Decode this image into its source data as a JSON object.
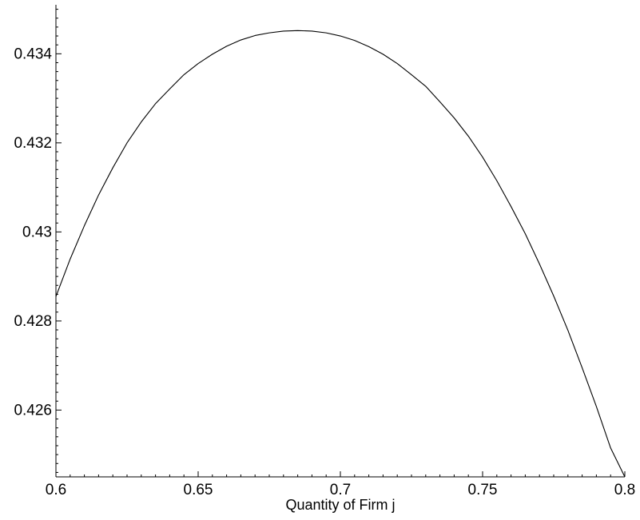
{
  "chart_data": {
    "type": "line",
    "title": "",
    "xlabel": "Quantity of Firm j",
    "ylabel": "",
    "xlim": [
      0.6,
      0.8
    ],
    "ylim": [
      0.4245,
      0.4351
    ],
    "grid": false,
    "x_ticks": [
      {
        "value": 0.6,
        "label": "0.6"
      },
      {
        "value": 0.65,
        "label": "0.65"
      },
      {
        "value": 0.7,
        "label": "0.7"
      },
      {
        "value": 0.75,
        "label": "0.75"
      },
      {
        "value": 0.8,
        "label": "0.8"
      }
    ],
    "y_ticks": [
      {
        "value": 0.426,
        "label": "0.426"
      },
      {
        "value": 0.428,
        "label": "0.428"
      },
      {
        "value": 0.43,
        "label": "0.43"
      },
      {
        "value": 0.432,
        "label": "0.432"
      },
      {
        "value": 0.434,
        "label": "0.434"
      }
    ],
    "series": [
      {
        "color": "#000000",
        "x": [
          0.6,
          0.605,
          0.61,
          0.615,
          0.62,
          0.625,
          0.63,
          0.635,
          0.64,
          0.645,
          0.65,
          0.655,
          0.66,
          0.665,
          0.67,
          0.675,
          0.68,
          0.685,
          0.69,
          0.695,
          0.7,
          0.705,
          0.71,
          0.715,
          0.72,
          0.725,
          0.73,
          0.735,
          0.74,
          0.745,
          0.75,
          0.755,
          0.76,
          0.765,
          0.77,
          0.775,
          0.78,
          0.785,
          0.79,
          0.795,
          0.8
        ],
        "y": [
          0.42855,
          0.42939,
          0.43014,
          0.43083,
          0.43144,
          0.432,
          0.43247,
          0.43288,
          0.43321,
          0.43353,
          0.43378,
          0.43399,
          0.43417,
          0.43431,
          0.43441,
          0.43447,
          0.43451,
          0.43452,
          0.43451,
          0.43447,
          0.4344,
          0.4343,
          0.43416,
          0.43399,
          0.43378,
          0.43353,
          0.43327,
          0.43292,
          0.43256,
          0.43215,
          0.43168,
          0.43115,
          0.43057,
          0.42996,
          0.42928,
          0.42856,
          0.42779,
          0.42695,
          0.42608,
          0.42515,
          0.4245
        ]
      }
    ]
  }
}
